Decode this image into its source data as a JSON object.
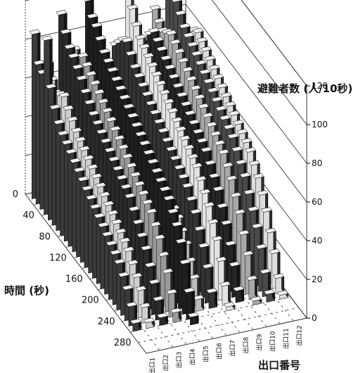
{
  "chart_data": {
    "type": "bar3d",
    "title": "",
    "zlabel": "避難者数 (人/10秒)",
    "xlabel": "時間 (秒)",
    "ylabel": "出口番号",
    "zlim": [
      0,
      120
    ],
    "z_ticks": [
      "0",
      "20",
      "40",
      "60",
      "80",
      "100",
      "120"
    ],
    "time_ticks": [
      "0",
      "40",
      "80",
      "120",
      "160",
      "200",
      "240",
      "280"
    ],
    "time_tick_values": [
      0,
      40,
      80,
      120,
      160,
      200,
      240,
      280
    ],
    "exits": [
      "出口1",
      "出口2",
      "出口3",
      "出口4",
      "出口5",
      "出口6",
      "出口7",
      "出口8",
      "出口9",
      "出口10",
      "出口11",
      "出口12"
    ],
    "time_bins": [
      10,
      20,
      30,
      40,
      50,
      60,
      70,
      80,
      90,
      100,
      110,
      120,
      130,
      140,
      150,
      160,
      170,
      180,
      190,
      200,
      210,
      220,
      230,
      240,
      250,
      260,
      270,
      280,
      290,
      300
    ],
    "grid": true,
    "series": [
      {
        "name": "出口1",
        "values": [
          85,
          72,
          70,
          90,
          68,
          60,
          55,
          52,
          50,
          48,
          46,
          44,
          42,
          40,
          38,
          36,
          34,
          32,
          30,
          28,
          26,
          24,
          20,
          16,
          10,
          4,
          0,
          0,
          0,
          0
        ]
      },
      {
        "name": "出口2",
        "values": [
          68,
          62,
          58,
          60,
          62,
          58,
          55,
          52,
          50,
          48,
          46,
          44,
          42,
          40,
          38,
          36,
          34,
          32,
          30,
          28,
          26,
          22,
          18,
          14,
          8,
          3,
          0,
          0,
          0,
          0
        ]
      },
      {
        "name": "出口3",
        "values": [
          92,
          85,
          80,
          78,
          75,
          72,
          68,
          65,
          62,
          60,
          58,
          56,
          54,
          52,
          50,
          48,
          46,
          44,
          40,
          36,
          32,
          28,
          22,
          16,
          10,
          4,
          0,
          0,
          0,
          0
        ]
      },
      {
        "name": "出口4",
        "values": [
          72,
          70,
          74,
          72,
          70,
          68,
          66,
          64,
          62,
          60,
          58,
          56,
          54,
          52,
          50,
          48,
          46,
          44,
          42,
          40,
          36,
          32,
          26,
          20,
          12,
          5,
          0,
          0,
          0,
          0
        ]
      },
      {
        "name": "出口5",
        "values": [
          96,
          90,
          88,
          84,
          80,
          78,
          76,
          74,
          72,
          70,
          68,
          66,
          64,
          62,
          60,
          58,
          56,
          54,
          52,
          50,
          48,
          44,
          40,
          34,
          26,
          14,
          4,
          0,
          0,
          0
        ]
      },
      {
        "name": "出口6",
        "values": [
          64,
          60,
          62,
          66,
          64,
          62,
          60,
          58,
          56,
          54,
          52,
          50,
          48,
          46,
          44,
          42,
          40,
          38,
          36,
          34,
          30,
          26,
          20,
          14,
          6,
          0,
          0,
          0,
          0,
          0
        ]
      },
      {
        "name": "出口7",
        "values": [
          70,
          74,
          78,
          80,
          76,
          72,
          70,
          68,
          66,
          64,
          62,
          60,
          58,
          56,
          54,
          52,
          50,
          48,
          46,
          42,
          38,
          32,
          26,
          18,
          8,
          0,
          0,
          0,
          0,
          0
        ]
      },
      {
        "name": "出口8",
        "values": [
          96,
          90,
          84,
          80,
          78,
          76,
          74,
          72,
          70,
          68,
          66,
          64,
          62,
          60,
          58,
          56,
          54,
          52,
          48,
          44,
          40,
          34,
          28,
          20,
          10,
          2,
          0,
          0,
          0,
          0
        ]
      },
      {
        "name": "出口9",
        "values": [
          66,
          72,
          78,
          82,
          80,
          78,
          76,
          74,
          72,
          70,
          68,
          66,
          64,
          62,
          60,
          58,
          56,
          52,
          48,
          44,
          38,
          32,
          24,
          16,
          6,
          0,
          0,
          0,
          0,
          0
        ]
      },
      {
        "name": "出口10",
        "values": [
          84,
          80,
          78,
          80,
          82,
          80,
          78,
          76,
          74,
          72,
          70,
          68,
          66,
          64,
          62,
          60,
          58,
          56,
          52,
          48,
          42,
          36,
          28,
          20,
          10,
          2,
          0,
          0,
          0,
          0
        ]
      },
      {
        "name": "出口11",
        "values": [
          100,
          96,
          92,
          88,
          84,
          82,
          80,
          78,
          76,
          74,
          72,
          70,
          68,
          66,
          64,
          62,
          60,
          56,
          52,
          48,
          42,
          36,
          30,
          22,
          12,
          4,
          0,
          0,
          0,
          0
        ]
      },
      {
        "name": "出口12",
        "values": [
          64,
          70,
          74,
          78,
          80,
          78,
          76,
          74,
          72,
          70,
          68,
          66,
          64,
          62,
          60,
          58,
          56,
          54,
          50,
          46,
          40,
          34,
          26,
          18,
          8,
          2,
          0,
          0,
          0,
          0
        ]
      }
    ]
  }
}
